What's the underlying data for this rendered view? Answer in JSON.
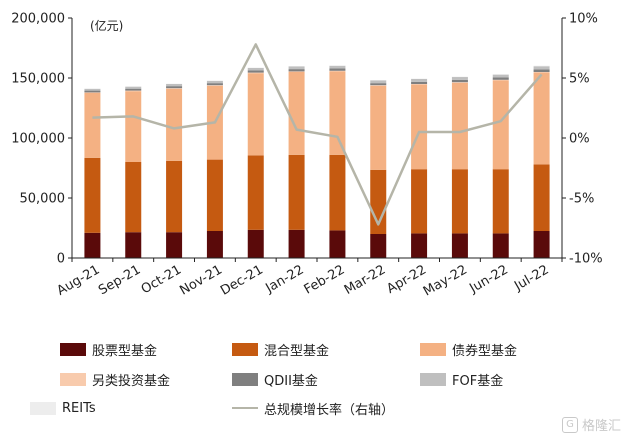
{
  "chart_data": {
    "type": "bar",
    "stacked": true,
    "unit_label": "(亿元)",
    "categories": [
      "Aug-21",
      "Sep-21",
      "Oct-21",
      "Nov-21",
      "Dec-21",
      "Jan-22",
      "Feb-22",
      "Mar-22",
      "Apr-22",
      "May-22",
      "Jun-22",
      "Jul-22"
    ],
    "ylim": [
      0,
      200000
    ],
    "yticks": [
      "0",
      "50,000",
      "100,000",
      "150,000",
      "200,000"
    ],
    "y2lim": [
      -10,
      10
    ],
    "y2ticks": [
      "-10%",
      "-5%",
      "0%",
      "5%",
      "10%"
    ],
    "series": [
      {
        "name": "股票型基金",
        "color": "#5a0a0a",
        "values": [
          21000,
          21500,
          21500,
          22500,
          23500,
          23500,
          23000,
          20000,
          20500,
          20500,
          20500,
          22500
        ]
      },
      {
        "name": "混合型基金",
        "color": "#c55a11",
        "values": [
          62500,
          58500,
          59500,
          59500,
          62000,
          62500,
          63000,
          53500,
          53500,
          53500,
          53500,
          55500
        ]
      },
      {
        "name": "债券型基金",
        "color": "#f4b183",
        "values": [
          54000,
          59000,
          60000,
          61500,
          68500,
          69000,
          69500,
          70000,
          70500,
          72000,
          74000,
          76500
        ]
      },
      {
        "name": "另类投资基金",
        "color": "#f8cbad",
        "values": [
          500,
          500,
          500,
          500,
          500,
          500,
          500,
          500,
          500,
          500,
          500,
          500
        ]
      },
      {
        "name": "QDII基金",
        "color": "#7f7f7f",
        "values": [
          1500,
          1600,
          1700,
          1700,
          1800,
          1900,
          1900,
          1700,
          1800,
          1900,
          1900,
          2200
        ]
      },
      {
        "name": "FOF基金",
        "color": "#bfbfbf",
        "values": [
          1500,
          1700,
          1800,
          1900,
          2100,
          2200,
          2300,
          2300,
          2400,
          2400,
          2400,
          2600
        ]
      },
      {
        "name": "REITs",
        "color": "#ededed",
        "values": [
          200,
          200,
          200,
          200,
          200,
          300,
          300,
          300,
          300,
          300,
          400,
          400
        ]
      },
      {
        "name": "总规模增长率（右轴）",
        "color": "#b5b5a8",
        "type": "line",
        "axis": "right",
        "values": [
          1.7,
          1.8,
          0.8,
          1.3,
          7.8,
          0.7,
          0.1,
          -7.2,
          0.5,
          0.5,
          1.4,
          5.3
        ]
      }
    ],
    "grid": false,
    "legend_position": "bottom"
  },
  "watermark": {
    "icon": "G",
    "text": "格隆汇"
  }
}
